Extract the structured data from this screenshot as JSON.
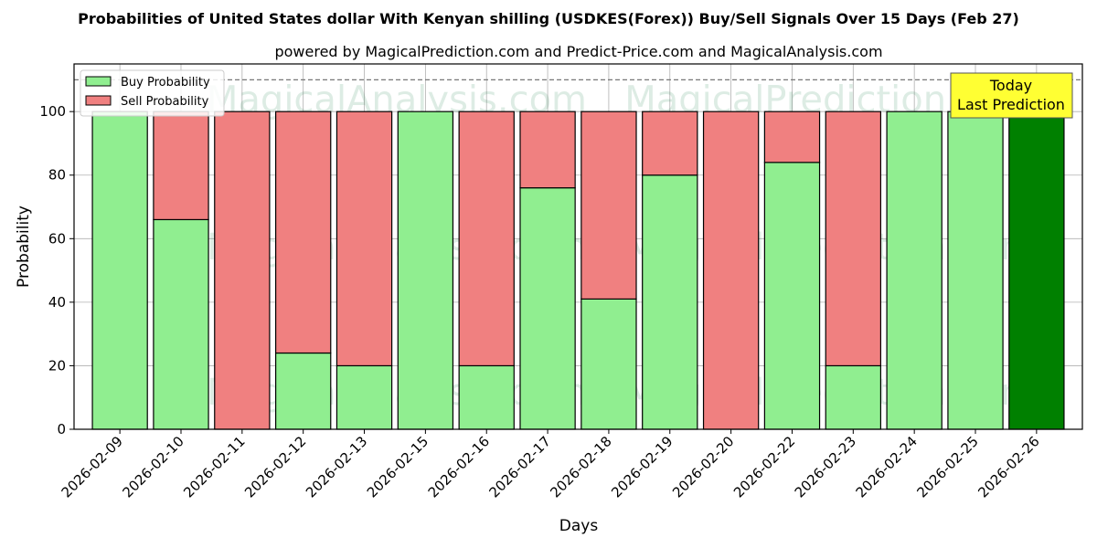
{
  "chart_data": {
    "type": "bar",
    "title": "Probabilities of United States dollar With Kenyan shilling (USDKES(Forex)) Buy/Sell Signals Over 15 Days (Feb 27)",
    "subtitle": "powered by MagicalPrediction.com and Predict-Price.com and MagicalAnalysis.com",
    "xlabel": "Days",
    "ylabel": "Probability",
    "ylim": [
      0,
      115
    ],
    "yticks": [
      0,
      20,
      40,
      60,
      80,
      100
    ],
    "reference_line": 110,
    "grid": true,
    "stacked": true,
    "legend_position": "top-left",
    "categories": [
      "2026-02-09",
      "2026-02-10",
      "2026-02-11",
      "2026-02-12",
      "2026-02-13",
      "2026-02-15",
      "2026-02-16",
      "2026-02-17",
      "2026-02-18",
      "2026-02-19",
      "2026-02-20",
      "2026-02-22",
      "2026-02-23",
      "2026-02-24",
      "2026-02-25",
      "2026-02-26"
    ],
    "series": [
      {
        "name": "Buy Probability",
        "color": "#90ee90",
        "values": [
          100,
          66,
          0,
          24,
          20,
          100,
          20,
          76,
          41,
          80,
          0,
          84,
          20,
          100,
          100,
          100
        ]
      },
      {
        "name": "Sell Probability",
        "color": "#f08080",
        "values": [
          0,
          34,
          100,
          76,
          80,
          0,
          80,
          24,
          59,
          20,
          100,
          16,
          80,
          0,
          0,
          0
        ]
      }
    ],
    "highlight": {
      "index": 15,
      "color": "#008000"
    },
    "annotation": {
      "line1": "Today",
      "line2": "Last Prediction",
      "color": "#ffff33"
    },
    "watermarks": [
      "MagicalAnalysis.com",
      "MagicalPrediction.com"
    ]
  }
}
